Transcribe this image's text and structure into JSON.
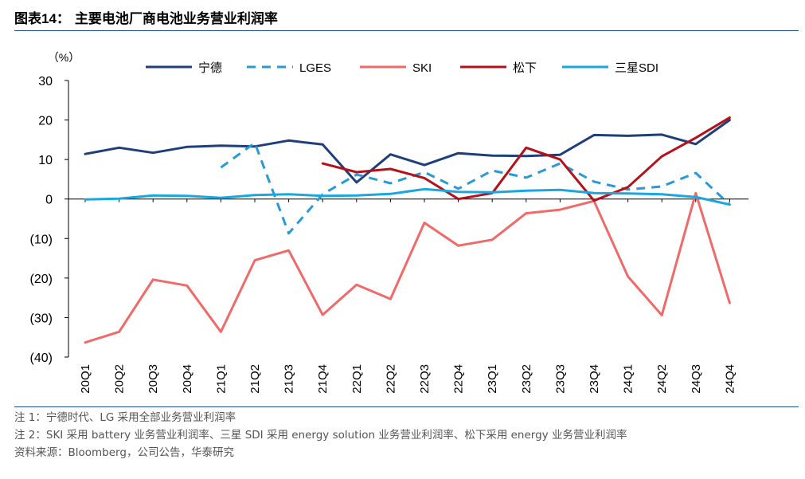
{
  "header": {
    "fig_label": "图表14：",
    "fig_title": "主要电池厂商电池业务营业利润率"
  },
  "notes": [
    "注 1：宁德时代、LG 采用全部业务营业利润率",
    "注 2：SKI 采用 battery 业务营业利润率、三星 SDI 采用 energy solution 业务营业利润率、松下采用 energy 业务营业利润率",
    "资料来源：Bloomberg，公司公告，华泰研究"
  ],
  "chart_data": {
    "type": "line",
    "unit_label": "（%）",
    "ylim": [
      -40,
      30
    ],
    "y_ticks": [
      30,
      20,
      10,
      0,
      -10,
      -20,
      -30,
      -40
    ],
    "y_tick_labels": [
      "30",
      "20",
      "10",
      "0",
      "(10)",
      "(20)",
      "(30)",
      "(40)"
    ],
    "categories": [
      "20Q1",
      "20Q2",
      "20Q3",
      "20Q4",
      "21Q1",
      "21Q2",
      "21Q3",
      "21Q4",
      "22Q1",
      "22Q2",
      "22Q3",
      "22Q4",
      "23Q1",
      "23Q2",
      "23Q3",
      "23Q4",
      "24Q1",
      "24Q2",
      "24Q3",
      "24Q4"
    ],
    "legend_position": "top",
    "grid": false,
    "series": [
      {
        "name": "宁德",
        "color": "#1f3f7a",
        "dash": "solid",
        "values": [
          11.4,
          13.0,
          11.7,
          13.2,
          13.5,
          13.3,
          14.8,
          13.8,
          4.2,
          11.3,
          8.6,
          11.6,
          11.0,
          10.9,
          11.2,
          16.2,
          16.0,
          16.3,
          13.9,
          20.0
        ]
      },
      {
        "name": "LGES",
        "color": "#2a9ad6",
        "dash": "dashed",
        "values": [
          null,
          null,
          null,
          null,
          8.0,
          14.2,
          -8.7,
          1.2,
          6.2,
          4.0,
          6.8,
          2.6,
          7.2,
          5.4,
          9.0,
          4.4,
          2.4,
          3.2,
          6.6,
          -1.4
        ]
      },
      {
        "name": "SKI",
        "color": "#f06a6a",
        "dash": "solid",
        "values": [
          -36.3,
          -33.6,
          -20.4,
          -21.9,
          -33.6,
          -15.5,
          -13.0,
          -29.3,
          -21.7,
          -25.3,
          -6.0,
          -11.8,
          -10.3,
          -3.6,
          -2.7,
          -0.5,
          -19.6,
          -29.4,
          1.5,
          -26.3
        ]
      },
      {
        "name": "松下",
        "color": "#b4111a",
        "dash": "solid",
        "values": [
          null,
          null,
          null,
          null,
          null,
          null,
          null,
          9.0,
          6.8,
          7.6,
          5.3,
          0.0,
          1.5,
          13.0,
          10.0,
          -0.4,
          3.0,
          10.8,
          15.5,
          20.6
        ]
      },
      {
        "name": "三星SDI",
        "color": "#1aa7e0",
        "dash": "solid",
        "values": [
          -0.1,
          0.1,
          0.9,
          0.8,
          0.3,
          1.0,
          1.2,
          0.8,
          0.9,
          1.3,
          2.5,
          1.8,
          1.7,
          2.1,
          2.3,
          1.5,
          1.4,
          1.2,
          0.5,
          -1.4
        ]
      }
    ]
  }
}
